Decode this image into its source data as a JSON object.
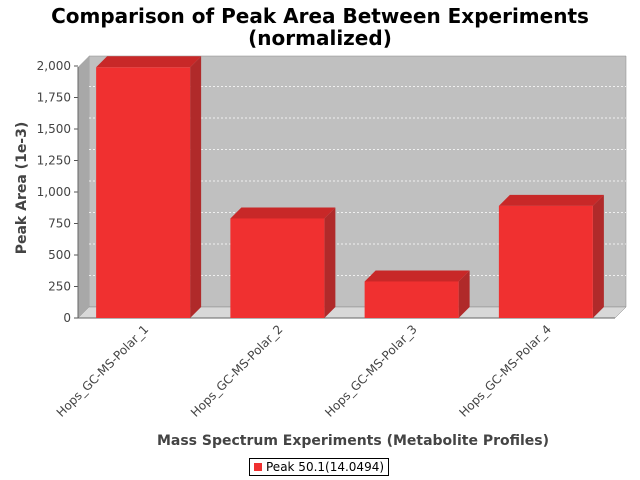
{
  "chart_title_line1": "Comparison of Peak Area Between Experiments",
  "chart_title_line2": "(normalized)",
  "chart_data": {
    "type": "bar",
    "title": "Comparison of Peak Area Between Experiments (normalized)",
    "xlabel": "Mass Spectrum Experiments (Metabolite Profiles)",
    "ylabel": "Peak Area (1e-3)",
    "categories": [
      "Hops_GC-MS-Polar_1",
      "Hops_GC-MS-Polar_2",
      "Hops_GC-MS-Polar_3",
      "Hops_GC-MS-Polar_4"
    ],
    "series": [
      {
        "name": "Peak 50.1(14.0494)",
        "values": [
          1990,
          790,
          290,
          890
        ]
      }
    ],
    "ylim": [
      0,
      2000
    ],
    "yticks": [
      0,
      250,
      500,
      750,
      1000,
      1250,
      1500,
      1750,
      2000
    ],
    "ytick_labels": [
      "0",
      "250",
      "500",
      "750",
      "1,000",
      "1,250",
      "1,500",
      "1,750",
      "2,000"
    ],
    "grid": true,
    "legend_position": "bottom-center",
    "colors": {
      "bar_front": "#f03030",
      "bar_top": "#c82828",
      "bar_side": "#b02a2a",
      "plot_background": "#c0c0c0",
      "floor": "#d8d8d8"
    }
  }
}
